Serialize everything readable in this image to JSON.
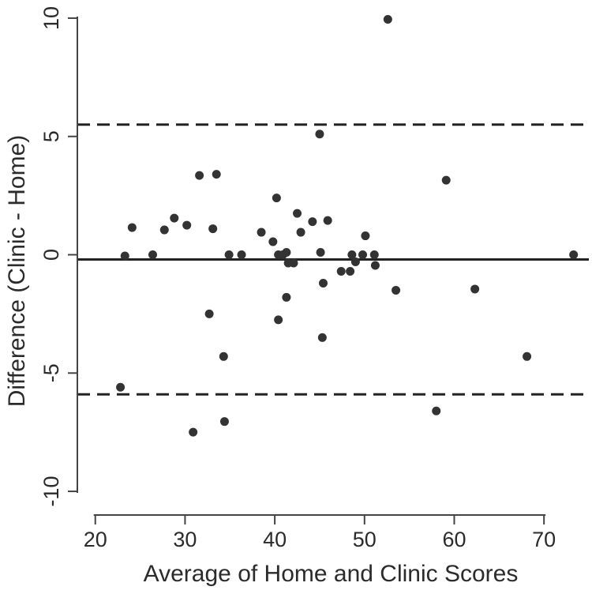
{
  "chart_data": {
    "type": "scatter",
    "title": "",
    "xlabel": "Average of Home and Clinic Scores",
    "ylabel": "Difference (Clinic - Home)",
    "xlim": [
      18,
      75
    ],
    "ylim": [
      -11,
      10.5
    ],
    "xticks": [
      20,
      30,
      40,
      50,
      60,
      70
    ],
    "yticks": [
      -10,
      -5,
      0,
      5,
      10
    ],
    "grid": false,
    "colors": {
      "points": "#333333",
      "lines": "#222222",
      "axes": "#444444"
    },
    "reference_lines": [
      {
        "y": 5.5,
        "style": "dashed"
      },
      {
        "y": -0.2,
        "style": "solid"
      },
      {
        "y": -5.9,
        "style": "dashed"
      }
    ],
    "points": [
      {
        "x": 22.8,
        "y": -5.6
      },
      {
        "x": 23.3,
        "y": -0.05
      },
      {
        "x": 24.1,
        "y": 1.15
      },
      {
        "x": 26.4,
        "y": 0.0
      },
      {
        "x": 27.7,
        "y": 1.05
      },
      {
        "x": 28.8,
        "y": 1.55
      },
      {
        "x": 30.2,
        "y": 1.25
      },
      {
        "x": 30.9,
        "y": -7.5
      },
      {
        "x": 31.6,
        "y": 3.35
      },
      {
        "x": 32.7,
        "y": -2.5
      },
      {
        "x": 33.1,
        "y": 1.1
      },
      {
        "x": 33.5,
        "y": 3.4
      },
      {
        "x": 34.3,
        "y": -4.3
      },
      {
        "x": 34.4,
        "y": -7.05
      },
      {
        "x": 34.9,
        "y": 0.0
      },
      {
        "x": 36.3,
        "y": 0.0
      },
      {
        "x": 38.5,
        "y": 0.95
      },
      {
        "x": 39.8,
        "y": 0.55
      },
      {
        "x": 40.2,
        "y": 2.4
      },
      {
        "x": 40.4,
        "y": 0.0
      },
      {
        "x": 40.4,
        "y": -2.75
      },
      {
        "x": 40.9,
        "y": 0.0
      },
      {
        "x": 41.3,
        "y": 0.1
      },
      {
        "x": 41.3,
        "y": -1.8
      },
      {
        "x": 41.5,
        "y": -0.35
      },
      {
        "x": 42.1,
        "y": -0.35
      },
      {
        "x": 42.5,
        "y": 1.75
      },
      {
        "x": 42.9,
        "y": 0.95
      },
      {
        "x": 44.2,
        "y": 1.4
      },
      {
        "x": 45.0,
        "y": 5.1
      },
      {
        "x": 45.1,
        "y": 0.1
      },
      {
        "x": 45.3,
        "y": -3.5
      },
      {
        "x": 45.4,
        "y": -1.2
      },
      {
        "x": 45.9,
        "y": 1.45
      },
      {
        "x": 47.4,
        "y": -0.7
      },
      {
        "x": 48.4,
        "y": -0.7
      },
      {
        "x": 48.6,
        "y": 0.0
      },
      {
        "x": 49.0,
        "y": -0.3
      },
      {
        "x": 49.8,
        "y": 0.0
      },
      {
        "x": 50.1,
        "y": 0.8
      },
      {
        "x": 51.1,
        "y": 0.0
      },
      {
        "x": 51.2,
        "y": -0.45
      },
      {
        "x": 52.6,
        "y": 9.95
      },
      {
        "x": 53.5,
        "y": -1.5
      },
      {
        "x": 58.0,
        "y": -6.6
      },
      {
        "x": 59.1,
        "y": 3.15
      },
      {
        "x": 62.3,
        "y": -1.45
      },
      {
        "x": 68.1,
        "y": -4.3
      },
      {
        "x": 73.3,
        "y": 0.0
      }
    ]
  }
}
